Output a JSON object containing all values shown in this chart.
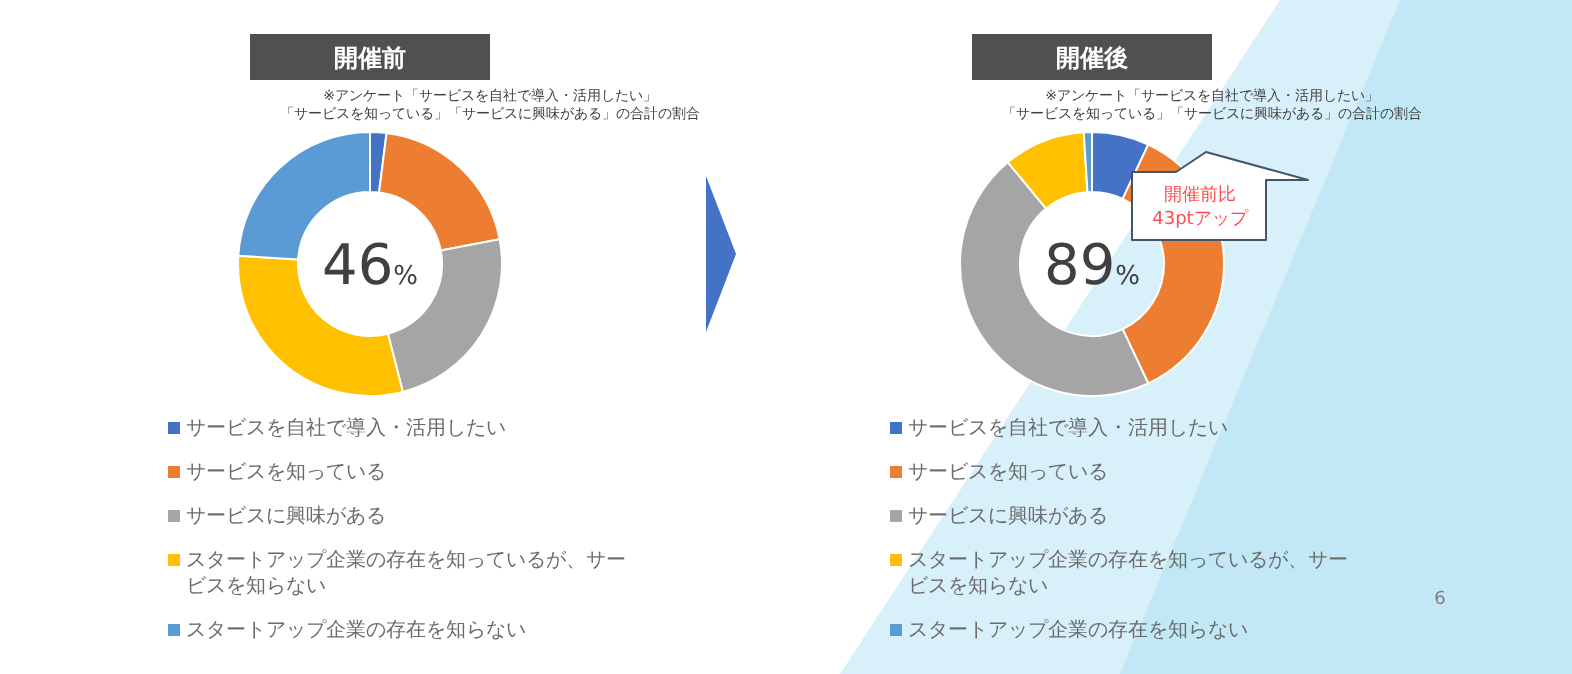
{
  "chart_data": [
    {
      "type": "donut",
      "title": "開催前",
      "subtitle": "※アンケート「サービスを自社で導入・活用したい」",
      "categories": [
        "サービスを自社で導入・活用したい",
        "サービスを知っている",
        "サービスに興味がある",
        "スタートアップ企業の存在を知っているが、サービスを知らない",
        "スタートアップ企業の存在を知らない"
      ],
      "values": [
        2,
        20,
        24,
        30,
        24
      ],
      "colors": [
        "#4472c4",
        "#ed7d31",
        "#a5a5a5",
        "#ffc000",
        "#5b9bd5"
      ],
      "legend": "bottom",
      "annotations": [
        "「サービスを知っている」「サービスに興味がある」の合計の割合",
        "46%"
      ]
    },
    {
      "type": "donut",
      "title": "開催後",
      "subtitle": "※アンケート「サービスを自社で導入・活用したい」",
      "categories": [
        "サービスを自社で導入・活用したい",
        "サービスを知っている",
        "サービスに興味がある",
        "スタートアップ企業の存在を知っているが、サービスを知らない",
        "スタートアップ企業の存在を知らない"
      ],
      "values": [
        7,
        36,
        46,
        10,
        1
      ],
      "colors": [
        "#4472c4",
        "#ed7d31",
        "#a5a5a5",
        "#ffc000",
        "#5b9bd5"
      ],
      "legend": "bottom",
      "annotations": [
        "「サービスを知っている」「サービスに興味がある」の合計の割合",
        "89%",
        "開催前比\n43ptアップ",
        "6"
      ]
    }
  ]
}
